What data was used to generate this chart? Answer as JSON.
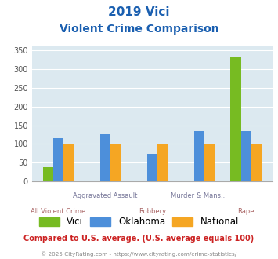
{
  "title_line1": "2019 Vici",
  "title_line2": "Violent Crime Comparison",
  "categories": [
    "All Violent Crime",
    "Aggravated Assault",
    "Robbery",
    "Murder & Mans...",
    "Rape"
  ],
  "series": {
    "Vici": [
      38,
      0,
      0,
      0,
      333
    ],
    "Oklahoma": [
      115,
      125,
      73,
      135,
      135
    ],
    "National": [
      100,
      100,
      100,
      100,
      100
    ]
  },
  "colors": {
    "Vici": "#77bb22",
    "Oklahoma": "#4d8fda",
    "National": "#f5a623"
  },
  "ylim": [
    0,
    360
  ],
  "yticks": [
    0,
    50,
    100,
    150,
    200,
    250,
    300,
    350
  ],
  "title_color": "#1a5fb0",
  "plot_bg": "#dce9f0",
  "bar_width": 0.22,
  "footer_text": "Compared to U.S. average. (U.S. average equals 100)",
  "copyright_text": "© 2025 CityRating.com - https://www.cityrating.com/crime-statistics/",
  "footer_color": "#cc2222",
  "copyright_color": "#888888",
  "cat_top": [
    "",
    "Aggravated Assault",
    "",
    "Murder & Mans...",
    ""
  ],
  "cat_bot": [
    "All Violent Crime",
    "",
    "Robbery",
    "",
    "Rape"
  ],
  "cat_top_color": "#777799",
  "cat_bot_color": "#aa6666"
}
